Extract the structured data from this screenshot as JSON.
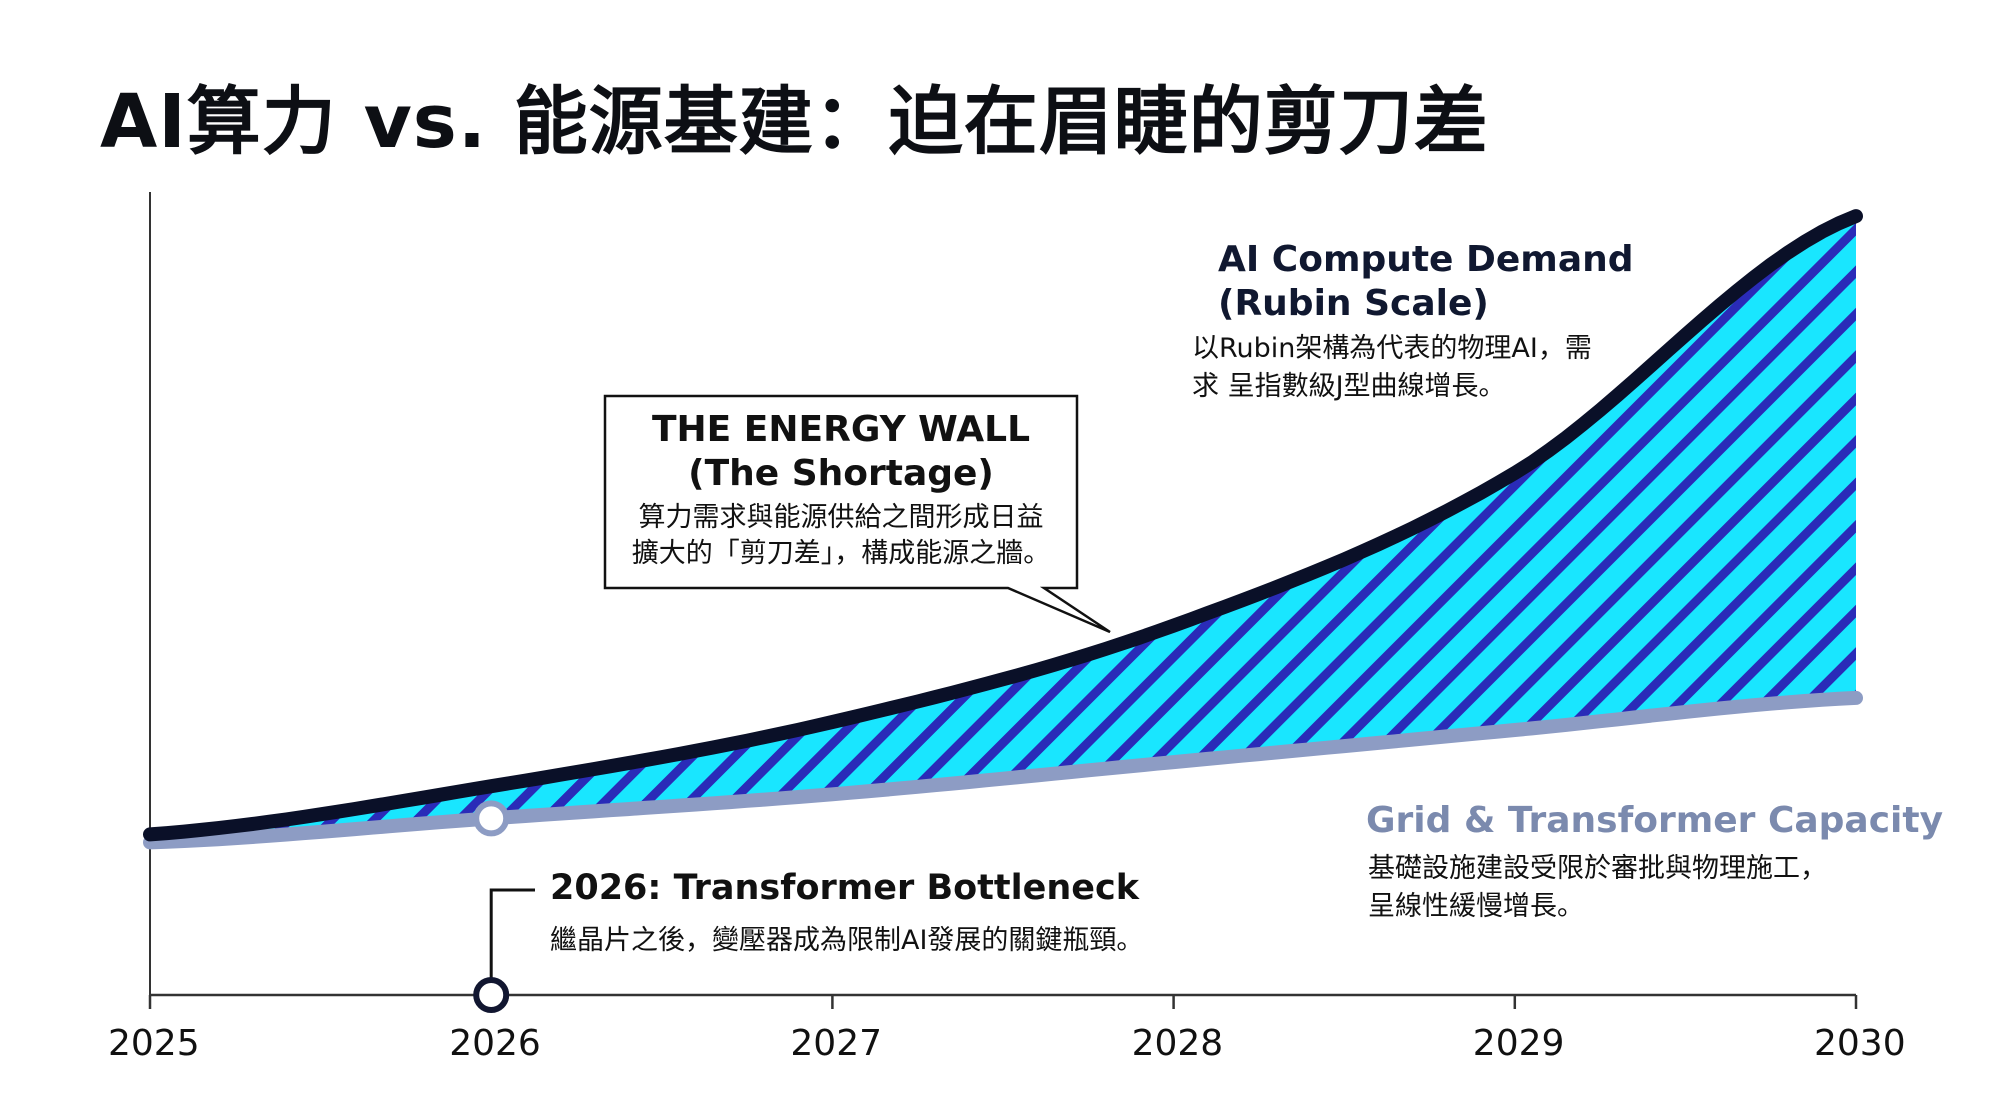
{
  "title": "AI算力 vs. 能源基建：迫在眉睫的剪刀差",
  "chart_data": {
    "type": "area",
    "x": [
      2025,
      2026,
      2027,
      2028,
      2029,
      2030
    ],
    "xlim": [
      2025,
      2030
    ],
    "ylim": [
      0,
      100
    ],
    "xticks": [
      "2025",
      "2026",
      "2027",
      "2028",
      "2029",
      "2030"
    ],
    "series": [
      {
        "name": "AI Compute Demand (Rubin Scale)",
        "values": [
          20,
          26,
          34,
          46,
          65,
          97
        ],
        "color": "#0a1028"
      },
      {
        "name": "Grid & Transformer Capacity",
        "values": [
          19,
          22,
          25,
          29,
          33,
          37
        ],
        "color": "#8d9cc4"
      }
    ],
    "gap_fill": {
      "base": "#19e6ff",
      "stripe": "#2a2bb8"
    },
    "annotations": {
      "demand": {
        "title_line1": "AI Compute Demand",
        "title_line2": "(Rubin Scale)",
        "desc_line1": "以Rubin架構為代表的物理AI，需",
        "desc_line2": "求 呈指數級J型曲線增長。"
      },
      "energy_wall": {
        "title_line1": "THE ENERGY WALL",
        "title_line2": "(The Shortage)",
        "desc_line1": "算力需求與能源供給之間形成日益",
        "desc_line2": "擴大的「剪刀差」，構成能源之牆。"
      },
      "grid": {
        "title": "Grid & Transformer Capacity",
        "desc_line1": "基礎設施建設受限於審批與物理施工，",
        "desc_line2": "呈線性緩慢增長。"
      },
      "bottleneck": {
        "x": 2026,
        "title": "2026: Transformer Bottleneck",
        "desc": "繼晶片之後，變壓器成為限制AI發展的關鍵瓶頸。"
      }
    }
  }
}
